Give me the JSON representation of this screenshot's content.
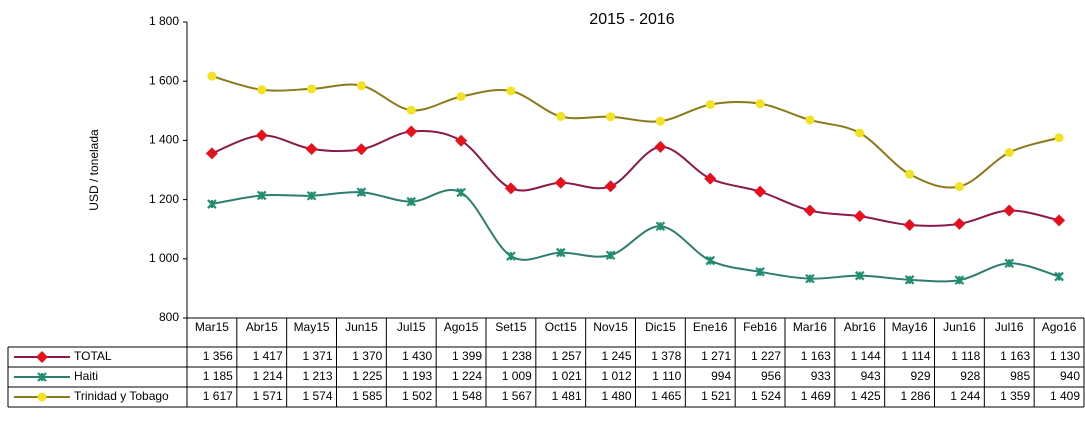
{
  "chart_data": {
    "type": "line",
    "title": "2015 - 2016",
    "y_label": "USD / tonelada",
    "categories": [
      "Mar15",
      "Abr15",
      "May15",
      "Jun15",
      "Jul15",
      "Ago15",
      "Set15",
      "Oct15",
      "Nov15",
      "Dic15",
      "Ene16",
      "Feb16",
      "Mar16",
      "Abr16",
      "May16",
      "Jun16",
      "Jul16",
      "Ago16"
    ],
    "ylim": [
      800,
      1800
    ],
    "yticks": [
      800,
      {
        "value": 1000,
        "label": "1 000"
      },
      {
        "value": 1200,
        "label": "1 200"
      },
      {
        "value": 1400,
        "label": "1 400"
      },
      {
        "value": 1600,
        "label": "1 600"
      },
      {
        "value": 1800,
        "label": "1 800"
      }
    ],
    "series": [
      {
        "name": "TOTAL",
        "color": "#8b1a4a",
        "marker_color": "#e8101c",
        "marker": "diamond",
        "values": [
          1356,
          1417,
          1371,
          1370,
          1430,
          1399,
          1238,
          1257,
          1245,
          1378,
          1271,
          1227,
          1163,
          1144,
          1114,
          1118,
          1163,
          1130
        ],
        "value_labels": [
          "1 356",
          "1 417",
          "1 371",
          "1 370",
          "1 430",
          "1 399",
          "1 238",
          "1 257",
          "1 245",
          "1 378",
          "1 271",
          "1 227",
          "1 163",
          "1 144",
          "1 114",
          "1 118",
          "1 163",
          "1 130"
        ]
      },
      {
        "name": "Haiti",
        "color": "#2e7d6e",
        "marker_color": "#1f8f6f",
        "marker": "x",
        "values": [
          1185,
          1214,
          1213,
          1225,
          1193,
          1224,
          1009,
          1021,
          1012,
          1110,
          994,
          956,
          933,
          943,
          929,
          928,
          985,
          940
        ],
        "value_labels": [
          "1 185",
          "1 214",
          "1 213",
          "1 225",
          "1 193",
          "1 224",
          "1 009",
          "1 021",
          "1 012",
          "1 110",
          "994",
          "956",
          "933",
          "943",
          "929",
          "928",
          "985",
          "940"
        ]
      },
      {
        "name": "Trinidad y Tobago",
        "color": "#8b7a1a",
        "marker_color": "#f2e222",
        "marker": "circle",
        "values": [
          1617,
          1571,
          1574,
          1585,
          1502,
          1548,
          1567,
          1481,
          1480,
          1465,
          1521,
          1524,
          1469,
          1425,
          1286,
          1244,
          1359,
          1409
        ],
        "value_labels": [
          "1 617",
          "1 571",
          "1 574",
          "1 585",
          "1 502",
          "1 548",
          "1 567",
          "1 481",
          "1 480",
          "1 465",
          "1 521",
          "1 524",
          "1 469",
          "1 425",
          "1 286",
          "1 244",
          "1 359",
          "1 409"
        ]
      }
    ]
  }
}
